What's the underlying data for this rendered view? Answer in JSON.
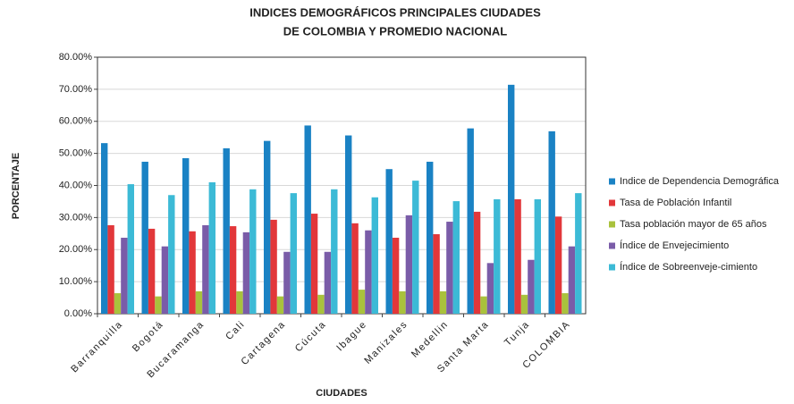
{
  "chart_data": {
    "type": "bar",
    "title": [
      "INDICES DEMOGRÁFICOS PRINCIPALES CIUDADES",
      "DE COLOMBIA Y PROMEDIO NACIONAL"
    ],
    "xlabel": "CIUDADES",
    "ylabel": "PORCENTAJE",
    "categories": [
      "Barranquilla",
      "Bogotá",
      "Bucaramanga",
      "Cali",
      "Cartagena",
      "Cúcuta",
      "Ibague",
      "Manizales",
      "Medellin",
      "Santa Marta",
      "Tunja",
      "COLOMBIA"
    ],
    "series": [
      {
        "name": "Indice de Dependencia Demográfica",
        "color": "#1a82c4",
        "values": [
          53.2,
          47.4,
          48.5,
          51.6,
          53.9,
          58.7,
          55.6,
          45.1,
          47.4,
          57.8,
          71.4,
          56.9
        ]
      },
      {
        "name": "Tasa de Población Infantil",
        "color": "#e2373a",
        "values": [
          27.6,
          26.5,
          25.7,
          27.3,
          29.3,
          31.2,
          28.2,
          23.7,
          24.8,
          31.8,
          35.7,
          30.3
        ]
      },
      {
        "name": "Tasa población mayor de 65 años",
        "color": "#a9c23c",
        "values": [
          6.4,
          5.4,
          7.0,
          7.0,
          5.4,
          5.9,
          7.5,
          7.0,
          7.0,
          5.4,
          5.9,
          6.4
        ]
      },
      {
        "name": "Índice de Envejecimiento",
        "color": "#7a5ca8",
        "values": [
          23.7,
          21.0,
          27.6,
          25.4,
          19.3,
          19.3,
          26.0,
          30.7,
          28.7,
          15.8,
          16.8,
          21.0
        ]
      },
      {
        "name": "Índice de Sobreenveje-cimiento",
        "color": "#3cbad6",
        "values": [
          40.4,
          37.0,
          41.0,
          38.8,
          37.6,
          38.8,
          36.3,
          41.5,
          35.1,
          35.7,
          35.7,
          37.6
        ]
      }
    ],
    "ylim": [
      0,
      80
    ],
    "yticks": [
      {
        "value": 0,
        "label": "0.00%"
      },
      {
        "value": 10,
        "label": "10.00%"
      },
      {
        "value": 20,
        "label": "20.00%"
      },
      {
        "value": 30,
        "label": "30.00%"
      },
      {
        "value": 40,
        "label": "40.00%"
      },
      {
        "value": 50,
        "label": "50.00%"
      },
      {
        "value": 60,
        "label": "60.00%"
      },
      {
        "value": 70,
        "label": "70.00%"
      },
      {
        "value": 80,
        "label": "80.00%"
      }
    ],
    "grid": true,
    "legend": "right"
  }
}
